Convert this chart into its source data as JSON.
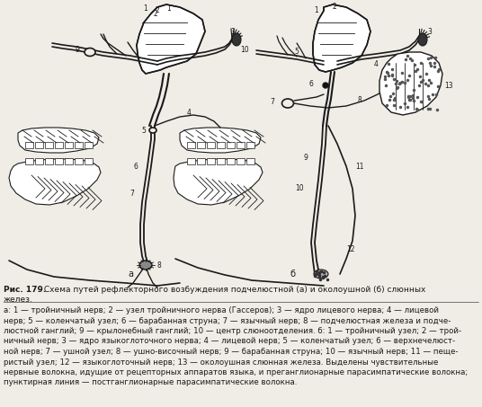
{
  "caption_bold": "Рис. 179.",
  "caption_rest": " Схема путей рефлекторного возбуждения подчелюстной (а) и околоушной (б) слюнных",
  "caption_line0": "желез.",
  "caption_line1": "а: 1 — тройничный нерв; 2 — узел тройничного нерва (Гассеров); 3 — ядро лицевого нерва; 4 — лицевой",
  "caption_line2": "нерв; 5 — коленчатый узел; 6 — барабанная струна; 7 — язычный нерв; 8 — подчелюстная железа и подче-",
  "caption_line3": "люстной ганглий; 9 — крылонебный ганглий; 10 — центр слюноотделения. б: 1 — тройничный узел; 2 — трой-",
  "caption_line4": "ничный нерв; 3 — ядро языкоглоточного нерва; 4 — лицевой нерв; 5 — коленчатый узел; 6 — верхнечелюст-",
  "caption_line5": "ной нерв; 7 — ушной узел; 8 — ушно-височный нерв; 9 — барабанная струна; 10 — язычный нерв; 11 — пеще-",
  "caption_line6": "ристый узел; 12 — языкоглоточный нерв; 13 — околоушная слюнная железа. Выделены чувствительные",
  "caption_line7": "нервные волокна, идущие от рецепторных аппаратов языка, и преганглионарные парасимпатические волокна;",
  "caption_line8": "пунктирная линия — постганглионарные парасимпатические волокна.",
  "bg_color": "#f0ede6",
  "lc": "#1a1a1a",
  "fig_width": 5.36,
  "fig_height": 4.53,
  "dpi": 100
}
